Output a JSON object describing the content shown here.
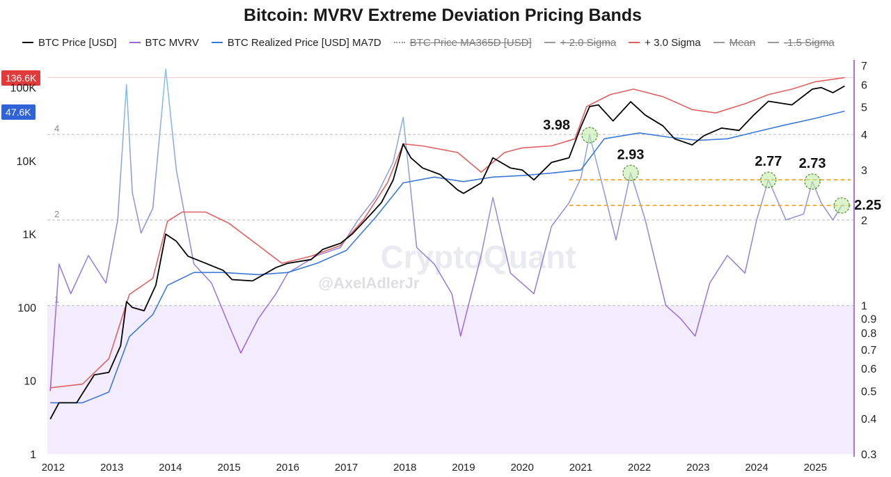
{
  "chart_data": {
    "type": "line",
    "title": "Bitcoin: MVRV Extreme Deviation Pricing Bands",
    "legend": {
      "placement": "top",
      "entries": [
        {
          "label": "BTC Price [USD]",
          "color": "#000000",
          "style": "solid",
          "enabled": true
        },
        {
          "label": "BTC MVRV",
          "color": "#a066d9",
          "style": "solid",
          "enabled": true
        },
        {
          "label": "BTC Realized Price [USD] MA7D",
          "color": "#3a78d8",
          "style": "solid",
          "enabled": true
        },
        {
          "label": "BTC Price MA365D [USD]",
          "color": "#999999",
          "style": "dotted",
          "enabled": false
        },
        {
          "label": "+ 2.0 Sigma",
          "color": "#888888",
          "style": "solid",
          "enabled": false
        },
        {
          "label": "+ 3.0 Sigma",
          "color": "#e06060",
          "style": "solid",
          "enabled": true
        },
        {
          "label": "Mean",
          "color": "#8888aa",
          "style": "solid",
          "enabled": false
        },
        {
          "label": "-1.5 Sigma",
          "color": "#888888",
          "style": "solid",
          "enabled": false
        }
      ]
    },
    "x_ticks": [
      "2012",
      "2013",
      "2014",
      "2015",
      "2016",
      "2017",
      "2018",
      "2019",
      "2020",
      "2021",
      "2022",
      "2023",
      "2024",
      "2025"
    ],
    "xlim": [
      2011.9,
      2025.65
    ],
    "y_left": {
      "scale": "log",
      "range": [
        1,
        200000
      ],
      "ticks": [
        "1",
        "10",
        "100",
        "1K",
        "10K",
        "100K"
      ],
      "tick_values": [
        1,
        10,
        100,
        1000,
        10000,
        100000
      ]
    },
    "y_right": {
      "scale": "log",
      "range": [
        0.3,
        7
      ],
      "ticks": [
        "0.3",
        "0.4",
        "0.5",
        "0.6",
        "0.7",
        "0.8",
        "0.9",
        "1",
        "2",
        "3",
        "4",
        "5",
        "6",
        "7"
      ],
      "tick_values": [
        0.3,
        0.4,
        0.5,
        0.6,
        0.7,
        0.8,
        0.9,
        1,
        2,
        3,
        4,
        5,
        6,
        7
      ]
    },
    "reference_lines": [
      {
        "label": "4",
        "value": 4
      },
      {
        "label": "2",
        "value": 2
      },
      {
        "label": "1",
        "value": 1
      }
    ],
    "current_values": [
      {
        "label": "136.6K",
        "color": "#e03a3a",
        "series": "+ 3.0 Sigma",
        "value": 136600
      },
      {
        "label": "47.6K",
        "color": "#2f63d6",
        "series": "BTC Realized Price [USD] MA7D",
        "value": 47600
      }
    ],
    "annotations": [
      {
        "text": "3.98",
        "x": 2021.15,
        "y": 3.98
      },
      {
        "text": "2.93",
        "x": 2021.85,
        "y": 2.93
      },
      {
        "text": "2.77",
        "x": 2024.2,
        "y": 2.77
      },
      {
        "text": "2.73",
        "x": 2024.95,
        "y": 2.73
      },
      {
        "text": "2.25",
        "x": 2025.45,
        "y": 2.25
      }
    ],
    "threshold_lines": [
      {
        "value": 2.77,
        "from_x": 2020.8,
        "color": "#f0a020"
      },
      {
        "value": 2.25,
        "from_x": 2020.8,
        "color": "#f0a020"
      }
    ],
    "watermark": {
      "text1": "CryptoQuant",
      "text2": "@AxelAdlerJr"
    },
    "series": [
      {
        "name": "BTC Price [USD]",
        "axis": "left",
        "x": [
          2011.95,
          2012.1,
          2012.4,
          2012.7,
          2012.95,
          2013.15,
          2013.25,
          2013.35,
          2013.55,
          2013.75,
          2013.92,
          2014.1,
          2014.3,
          2014.6,
          2014.9,
          2015.05,
          2015.4,
          2015.8,
          2016.0,
          2016.4,
          2016.6,
          2016.9,
          2017.1,
          2017.4,
          2017.6,
          2017.8,
          2017.97,
          2018.1,
          2018.3,
          2018.6,
          2018.9,
          2019.0,
          2019.3,
          2019.5,
          2019.8,
          2020.0,
          2020.2,
          2020.5,
          2020.8,
          2021.0,
          2021.15,
          2021.3,
          2021.55,
          2021.85,
          2022.1,
          2022.4,
          2022.6,
          2022.9,
          2023.1,
          2023.4,
          2023.7,
          2023.95,
          2024.2,
          2024.6,
          2024.95,
          2025.1,
          2025.3,
          2025.5
        ],
        "values": [
          3,
          5,
          5,
          12,
          13,
          30,
          120,
          100,
          90,
          200,
          1000,
          800,
          500,
          400,
          320,
          240,
          230,
          350,
          400,
          450,
          620,
          750,
          1000,
          1800,
          2700,
          5500,
          17000,
          11000,
          8000,
          6500,
          4000,
          3600,
          5000,
          11000,
          8000,
          7500,
          5500,
          9500,
          11000,
          29000,
          55000,
          58000,
          35000,
          64000,
          42000,
          30000,
          20000,
          16500,
          22000,
          28000,
          26000,
          42000,
          65000,
          58000,
          95000,
          100000,
          85000,
          105000
        ]
      },
      {
        "name": "BTC Realized Price [USD] MA7D",
        "axis": "left",
        "x": [
          2011.95,
          2012.5,
          2012.95,
          2013.3,
          2013.7,
          2013.95,
          2014.4,
          2014.9,
          2015.5,
          2016.0,
          2016.5,
          2017.0,
          2017.5,
          2017.97,
          2018.5,
          2019.0,
          2019.5,
          2020.0,
          2020.5,
          2021.0,
          2021.4,
          2022.0,
          2022.5,
          2023.0,
          2023.5,
          2024.0,
          2024.5,
          2025.0,
          2025.5
        ],
        "values": [
          5,
          5,
          7,
          40,
          80,
          200,
          300,
          300,
          280,
          300,
          400,
          600,
          1700,
          5000,
          6000,
          5200,
          6000,
          6300,
          6800,
          7500,
          20000,
          24000,
          21000,
          19000,
          20000,
          25000,
          31000,
          38000,
          47600
        ]
      },
      {
        "name": "+ 3.0 Sigma",
        "axis": "left",
        "x": [
          2011.95,
          2012.5,
          2012.95,
          2013.3,
          2013.7,
          2013.95,
          2014.2,
          2014.6,
          2015.0,
          2015.5,
          2015.9,
          2016.4,
          2016.9,
          2017.3,
          2017.7,
          2017.97,
          2018.3,
          2018.9,
          2019.3,
          2019.7,
          2020.0,
          2020.5,
          2020.9,
          2021.1,
          2021.5,
          2021.9,
          2022.4,
          2022.9,
          2023.3,
          2023.8,
          2024.2,
          2024.6,
          2025.0,
          2025.5
        ],
        "values": [
          8,
          9,
          20,
          150,
          250,
          1500,
          2000,
          2000,
          1400,
          700,
          400,
          500,
          700,
          1600,
          5000,
          17000,
          16000,
          13000,
          7000,
          13000,
          15000,
          16000,
          20000,
          55000,
          80000,
          95000,
          75000,
          50000,
          45000,
          60000,
          80000,
          95000,
          120000,
          136600
        ]
      },
      {
        "name": "BTC MVRV",
        "axis": "right",
        "x": [
          2011.95,
          2012.1,
          2012.3,
          2012.6,
          2012.9,
          2013.1,
          2013.25,
          2013.35,
          2013.5,
          2013.7,
          2013.92,
          2014.1,
          2014.4,
          2014.7,
          2015.0,
          2015.2,
          2015.5,
          2015.8,
          2016.0,
          2016.5,
          2016.9,
          2017.2,
          2017.5,
          2017.8,
          2017.97,
          2018.2,
          2018.5,
          2018.8,
          2018.95,
          2019.3,
          2019.5,
          2019.8,
          2020.2,
          2020.5,
          2020.8,
          2021.0,
          2021.15,
          2021.4,
          2021.6,
          2021.85,
          2022.1,
          2022.45,
          2022.7,
          2022.95,
          2023.2,
          2023.5,
          2023.8,
          2024.0,
          2024.2,
          2024.5,
          2024.8,
          2024.95,
          2025.1,
          2025.3,
          2025.45
        ],
        "values": [
          0.5,
          1.4,
          1.1,
          1.5,
          1.2,
          2.0,
          6.0,
          2.5,
          1.8,
          2.2,
          6.8,
          3.0,
          1.4,
          1.2,
          0.85,
          0.68,
          0.9,
          1.1,
          1.3,
          1.5,
          1.6,
          2.0,
          2.4,
          3.2,
          4.6,
          1.6,
          1.4,
          1.1,
          0.78,
          1.5,
          2.4,
          1.3,
          1.1,
          1.9,
          2.3,
          2.8,
          3.98,
          2.5,
          1.7,
          2.93,
          2.0,
          1.0,
          0.9,
          0.78,
          1.2,
          1.5,
          1.3,
          2.0,
          2.77,
          2.0,
          2.1,
          2.73,
          2.3,
          2.0,
          2.25
        ]
      }
    ]
  }
}
